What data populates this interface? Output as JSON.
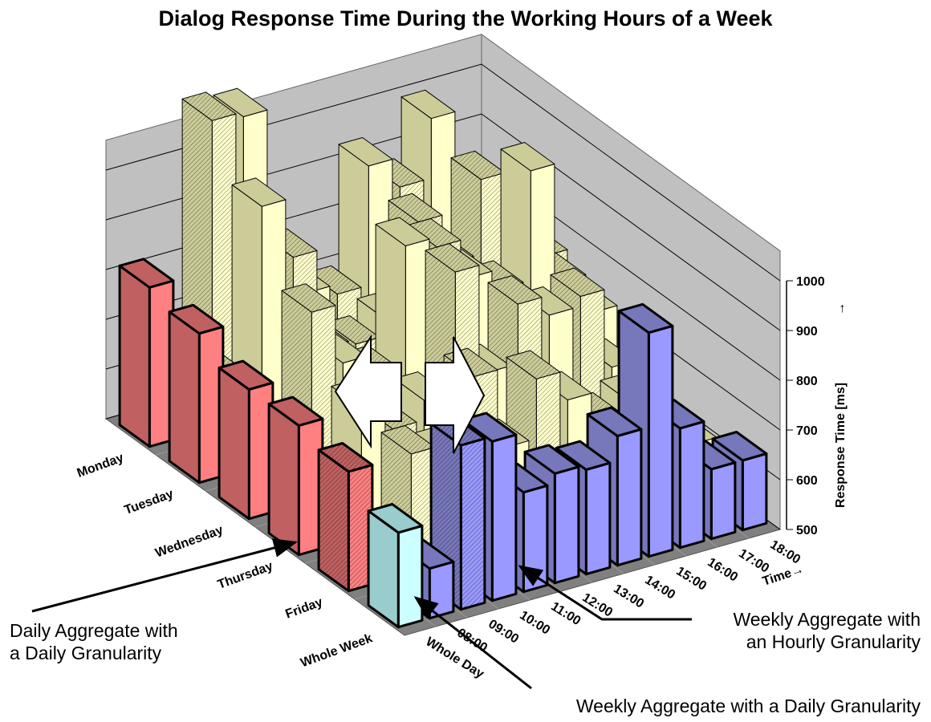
{
  "chart_data": {
    "type": "bar3d",
    "title": "Dialog Response Time During the Working Hours of a Week",
    "zlabel": "Response Time  [ms]",
    "zlabel_arrow": "→",
    "xlabel": "Time→",
    "zlim": [
      500,
      1000
    ],
    "zticks": [
      500,
      600,
      700,
      800,
      900,
      1000
    ],
    "rows": [
      "Monday",
      "Tuesday",
      "Wednesday",
      "Thursday",
      "Friday",
      "Whole Week"
    ],
    "columns": [
      "Whole Day",
      "08:00",
      "09:00",
      "10:00",
      "11:00",
      "12:00",
      "13:00",
      "14:00",
      "15:00",
      "16:00",
      "17:00",
      "18:00"
    ],
    "series": [
      {
        "name": "Monday",
        "whole_day": 820,
        "hourly": [
          640,
          1120,
          1110,
          760,
          720,
          700,
          940,
          880,
          1000,
          760,
          700
        ]
      },
      {
        "name": "Tuesday",
        "whole_day": 800,
        "hourly": [
          680,
          1020,
          900,
          700,
          690,
          720,
          900,
          800,
          950,
          820,
          760
        ]
      },
      {
        "name": "Wednesday",
        "whole_day": 760,
        "hourly": [
          600,
          880,
          760,
          720,
          960,
          940,
          860,
          820,
          1040,
          800,
          720
        ]
      },
      {
        "name": "Thursday",
        "whole_day": 760,
        "hourly": [
          620,
          760,
          700,
          740,
          980,
          760,
          880,
          840,
          860,
          700,
          650
        ]
      },
      {
        "name": "Friday",
        "whole_day": 740,
        "hourly": [
          580,
          740,
          720,
          860,
          700,
          820,
          760,
          700,
          720,
          640,
          600
        ]
      },
      {
        "name": "Whole Week",
        "whole_day": 690,
        "hourly": [
          600,
          830,
          820,
          700,
          720,
          710,
          760,
          950,
          740,
          640,
          640
        ]
      }
    ],
    "highlighted": [
      "Friday / Whole Day",
      "Whole Week / 09:00"
    ],
    "colors": {
      "daily_aggregate": "#ff8080",
      "hourly_aggregate": "#9999ff",
      "weekly_daily": "#ccffff",
      "detail": "#ffffcc",
      "floor": "#808080",
      "wall": "#c0c0c0"
    }
  },
  "annotations": {
    "daily_line1": "Daily Aggregate with",
    "daily_line2": "a Daily Granularity",
    "hourly_line1": "Weekly Aggregate with",
    "hourly_line2": "an Hourly Granularity",
    "weekly_daily": "Weekly Aggregate with a Daily Granularity"
  }
}
